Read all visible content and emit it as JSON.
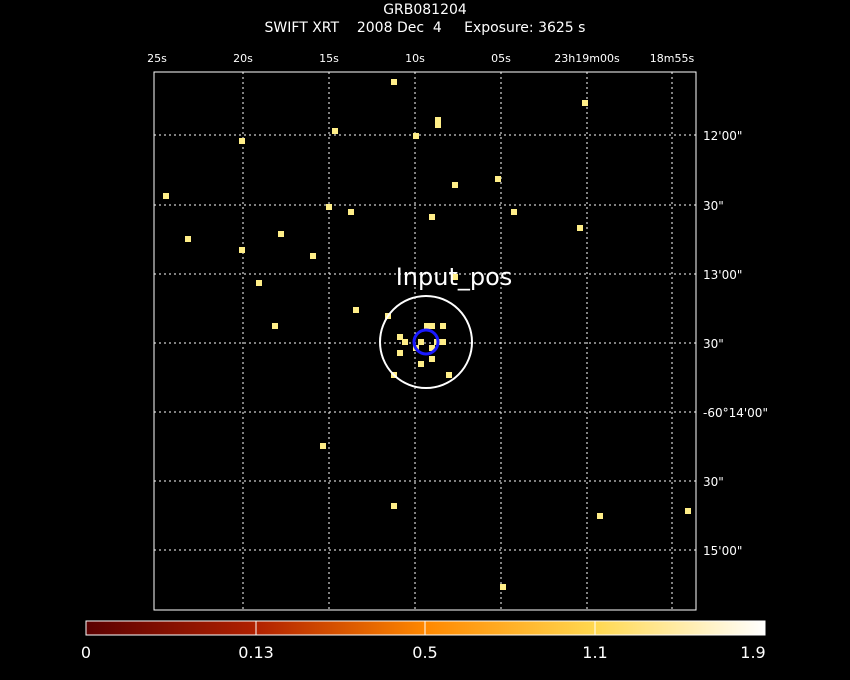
{
  "header": {
    "title": "GRB081204",
    "subtitle": "SWIFT XRT    2008 Dec  4     Exposure: 3625 s"
  },
  "axes": {
    "ra_ticks": [
      "25s",
      "20s",
      "15s",
      "10s",
      "05s",
      "23h19m00s",
      "18m55s"
    ],
    "dec_ticks": [
      "12'00\"",
      "30\"",
      "13'00\"",
      "30\"",
      "-60°14'00\"",
      "30\"",
      "15'00\""
    ],
    "grid": true
  },
  "region": {
    "label": "Input_pos",
    "color": "#ffffff",
    "centroid_color": "#1010ff"
  },
  "colorbar": {
    "labels": [
      "0",
      "0.13",
      "0.5",
      "1.1",
      "1.9"
    ],
    "colors": [
      "#600000",
      "#c03000",
      "#ff8000",
      "#ffd040",
      "#ffffa0",
      "#ffffff"
    ]
  },
  "colors": {
    "background": "#000000",
    "source": "#ffee88",
    "grid": "#ffffff"
  }
}
